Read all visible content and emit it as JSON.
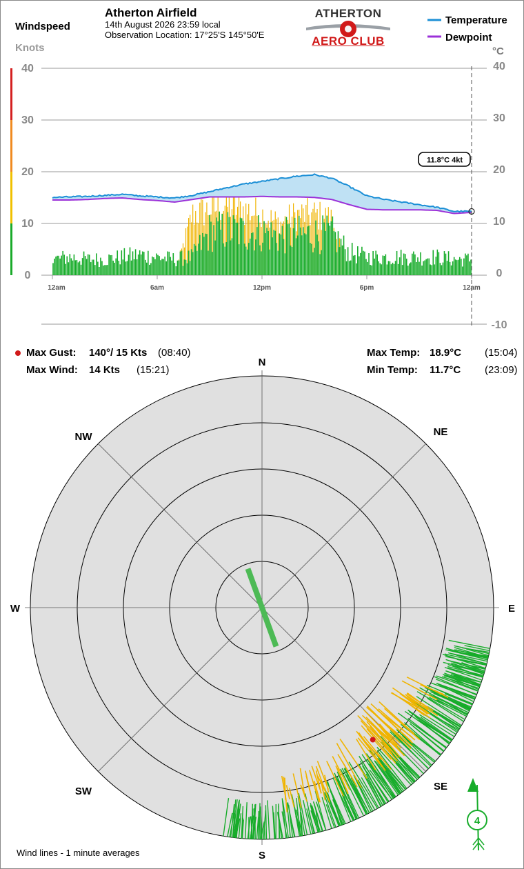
{
  "header": {
    "panel_label": "Windspeed",
    "unit_left": "Knots",
    "station_title": "Atherton Airfield",
    "date_line": "14th August 2026  23:59 local",
    "location_line": "Observation Location: 17°25'S 145°50'E",
    "logo_top": "ATHERTON",
    "logo_bottom": "AERO CLUB",
    "unit_right": "°C"
  },
  "legend": {
    "temperature": "Temperature",
    "dewpoint": "Dewpoint",
    "temperature_color": "#1b8fd6",
    "dewpoint_color": "#9b30d8"
  },
  "current_readout": "11.8°C  4kt",
  "summary": {
    "max_gust_label": "Max Gust:",
    "max_gust_value": "140°/ 15 Kts",
    "max_gust_time": "(08:40)",
    "max_wind_label": "Max Wind:",
    "max_wind_value": "14 Kts",
    "max_wind_time": "(15:21)",
    "max_temp_label": "Max Temp:",
    "max_temp_value": "18.9°C",
    "max_temp_time": "(15:04)",
    "min_temp_label": "Min Temp:",
    "min_temp_value": "11.7°C",
    "min_temp_time": "(23:09)"
  },
  "compass": {
    "N": "N",
    "NE": "NE",
    "E": "E",
    "SE": "SE",
    "S": "S",
    "SW": "SW",
    "W": "W",
    "NW": "NW"
  },
  "footer_note": "Wind lines - 1 minute averages",
  "wind_indicator_value": "4",
  "chart_data": [
    {
      "type": "bar",
      "name": "windspeed-timeseries",
      "x_ticks": [
        "12am",
        "6am",
        "12pm",
        "6pm",
        "12am"
      ],
      "x_range_hours": [
        0,
        24
      ],
      "left_axis": {
        "label": "Knots",
        "ylim": [
          0,
          40
        ],
        "ticks": [
          0,
          10,
          20,
          30,
          40
        ],
        "band_colors": [
          [
            "#1aaa2a",
            0,
            10
          ],
          [
            "#f0c000",
            10,
            20
          ],
          [
            "#f08a20",
            20,
            30
          ],
          [
            "#d42020",
            30,
            40
          ]
        ]
      },
      "right_axis": {
        "label": "°C",
        "ylim": [
          -10,
          40
        ],
        "ticks": [
          -10,
          0,
          10,
          20,
          30,
          40
        ]
      },
      "wind_avg_color": "#17ac2a",
      "wind_gust_color": "#f0b400",
      "wind_hourly": {
        "hours": [
          0,
          1,
          2,
          3,
          4,
          5,
          6,
          7,
          8,
          9,
          10,
          11,
          12,
          13,
          14,
          15,
          16,
          17,
          18,
          19,
          20,
          21,
          22,
          23,
          24
        ],
        "avg_kt": [
          3.5,
          4,
          3.5,
          3.5,
          4,
          4.5,
          4,
          3.5,
          4,
          9.5,
          10,
          9.5,
          9.5,
          8.5,
          9,
          9,
          9,
          5,
          4,
          4,
          4,
          4,
          4,
          3.5,
          3.5
        ],
        "gust_kt": [
          0,
          0,
          0,
          0,
          0,
          0,
          0,
          0,
          13,
          14,
          15,
          14,
          13,
          11,
          13,
          13,
          12,
          0,
          0,
          0,
          0,
          0,
          0,
          0,
          0
        ]
      },
      "temperature": {
        "hours": [
          0,
          1,
          2,
          3,
          4,
          5,
          6,
          7,
          8,
          9,
          10,
          11,
          12,
          13,
          14,
          15,
          16,
          17,
          18,
          19,
          20,
          21,
          22,
          23,
          24
        ],
        "values": [
          14.5,
          14.6,
          14.7,
          14.9,
          15.1,
          14.8,
          14.6,
          14.4,
          14.9,
          15.6,
          16.4,
          17.1,
          17.6,
          18.1,
          18.6,
          18.9,
          18.2,
          16.6,
          14.8,
          14.1,
          13.6,
          13.1,
          12.6,
          11.8,
          11.8
        ]
      },
      "dewpoint": {
        "hours": [
          0,
          1,
          2,
          3,
          4,
          5,
          6,
          7,
          8,
          9,
          10,
          11,
          12,
          13,
          14,
          15,
          16,
          17,
          18,
          19,
          20,
          21,
          22,
          23,
          24
        ],
        "values": [
          14.0,
          14.0,
          14.1,
          14.3,
          14.4,
          14.1,
          13.9,
          13.6,
          14.1,
          14.6,
          14.6,
          14.6,
          14.7,
          14.6,
          14.6,
          14.5,
          14.1,
          13.1,
          12.2,
          12.1,
          12.1,
          12.1,
          12.0,
          11.4,
          11.6
        ]
      },
      "current": {
        "temp_c": 11.8,
        "wind_kt": 4
      }
    },
    {
      "type": "scatter",
      "name": "wind-rose",
      "rings_kt": [
        5,
        10,
        15,
        20,
        25
      ],
      "max_gust": {
        "dir_deg": 140,
        "speed_kt": 15
      },
      "mean_vector": {
        "dir_deg": 160,
        "length_kt": 4
      },
      "wind_directions_deg": {
        "from": 100,
        "to": 190,
        "dominant": 135
      },
      "avg_color": "#17ac2a",
      "gust_color": "#f0b400"
    }
  ]
}
